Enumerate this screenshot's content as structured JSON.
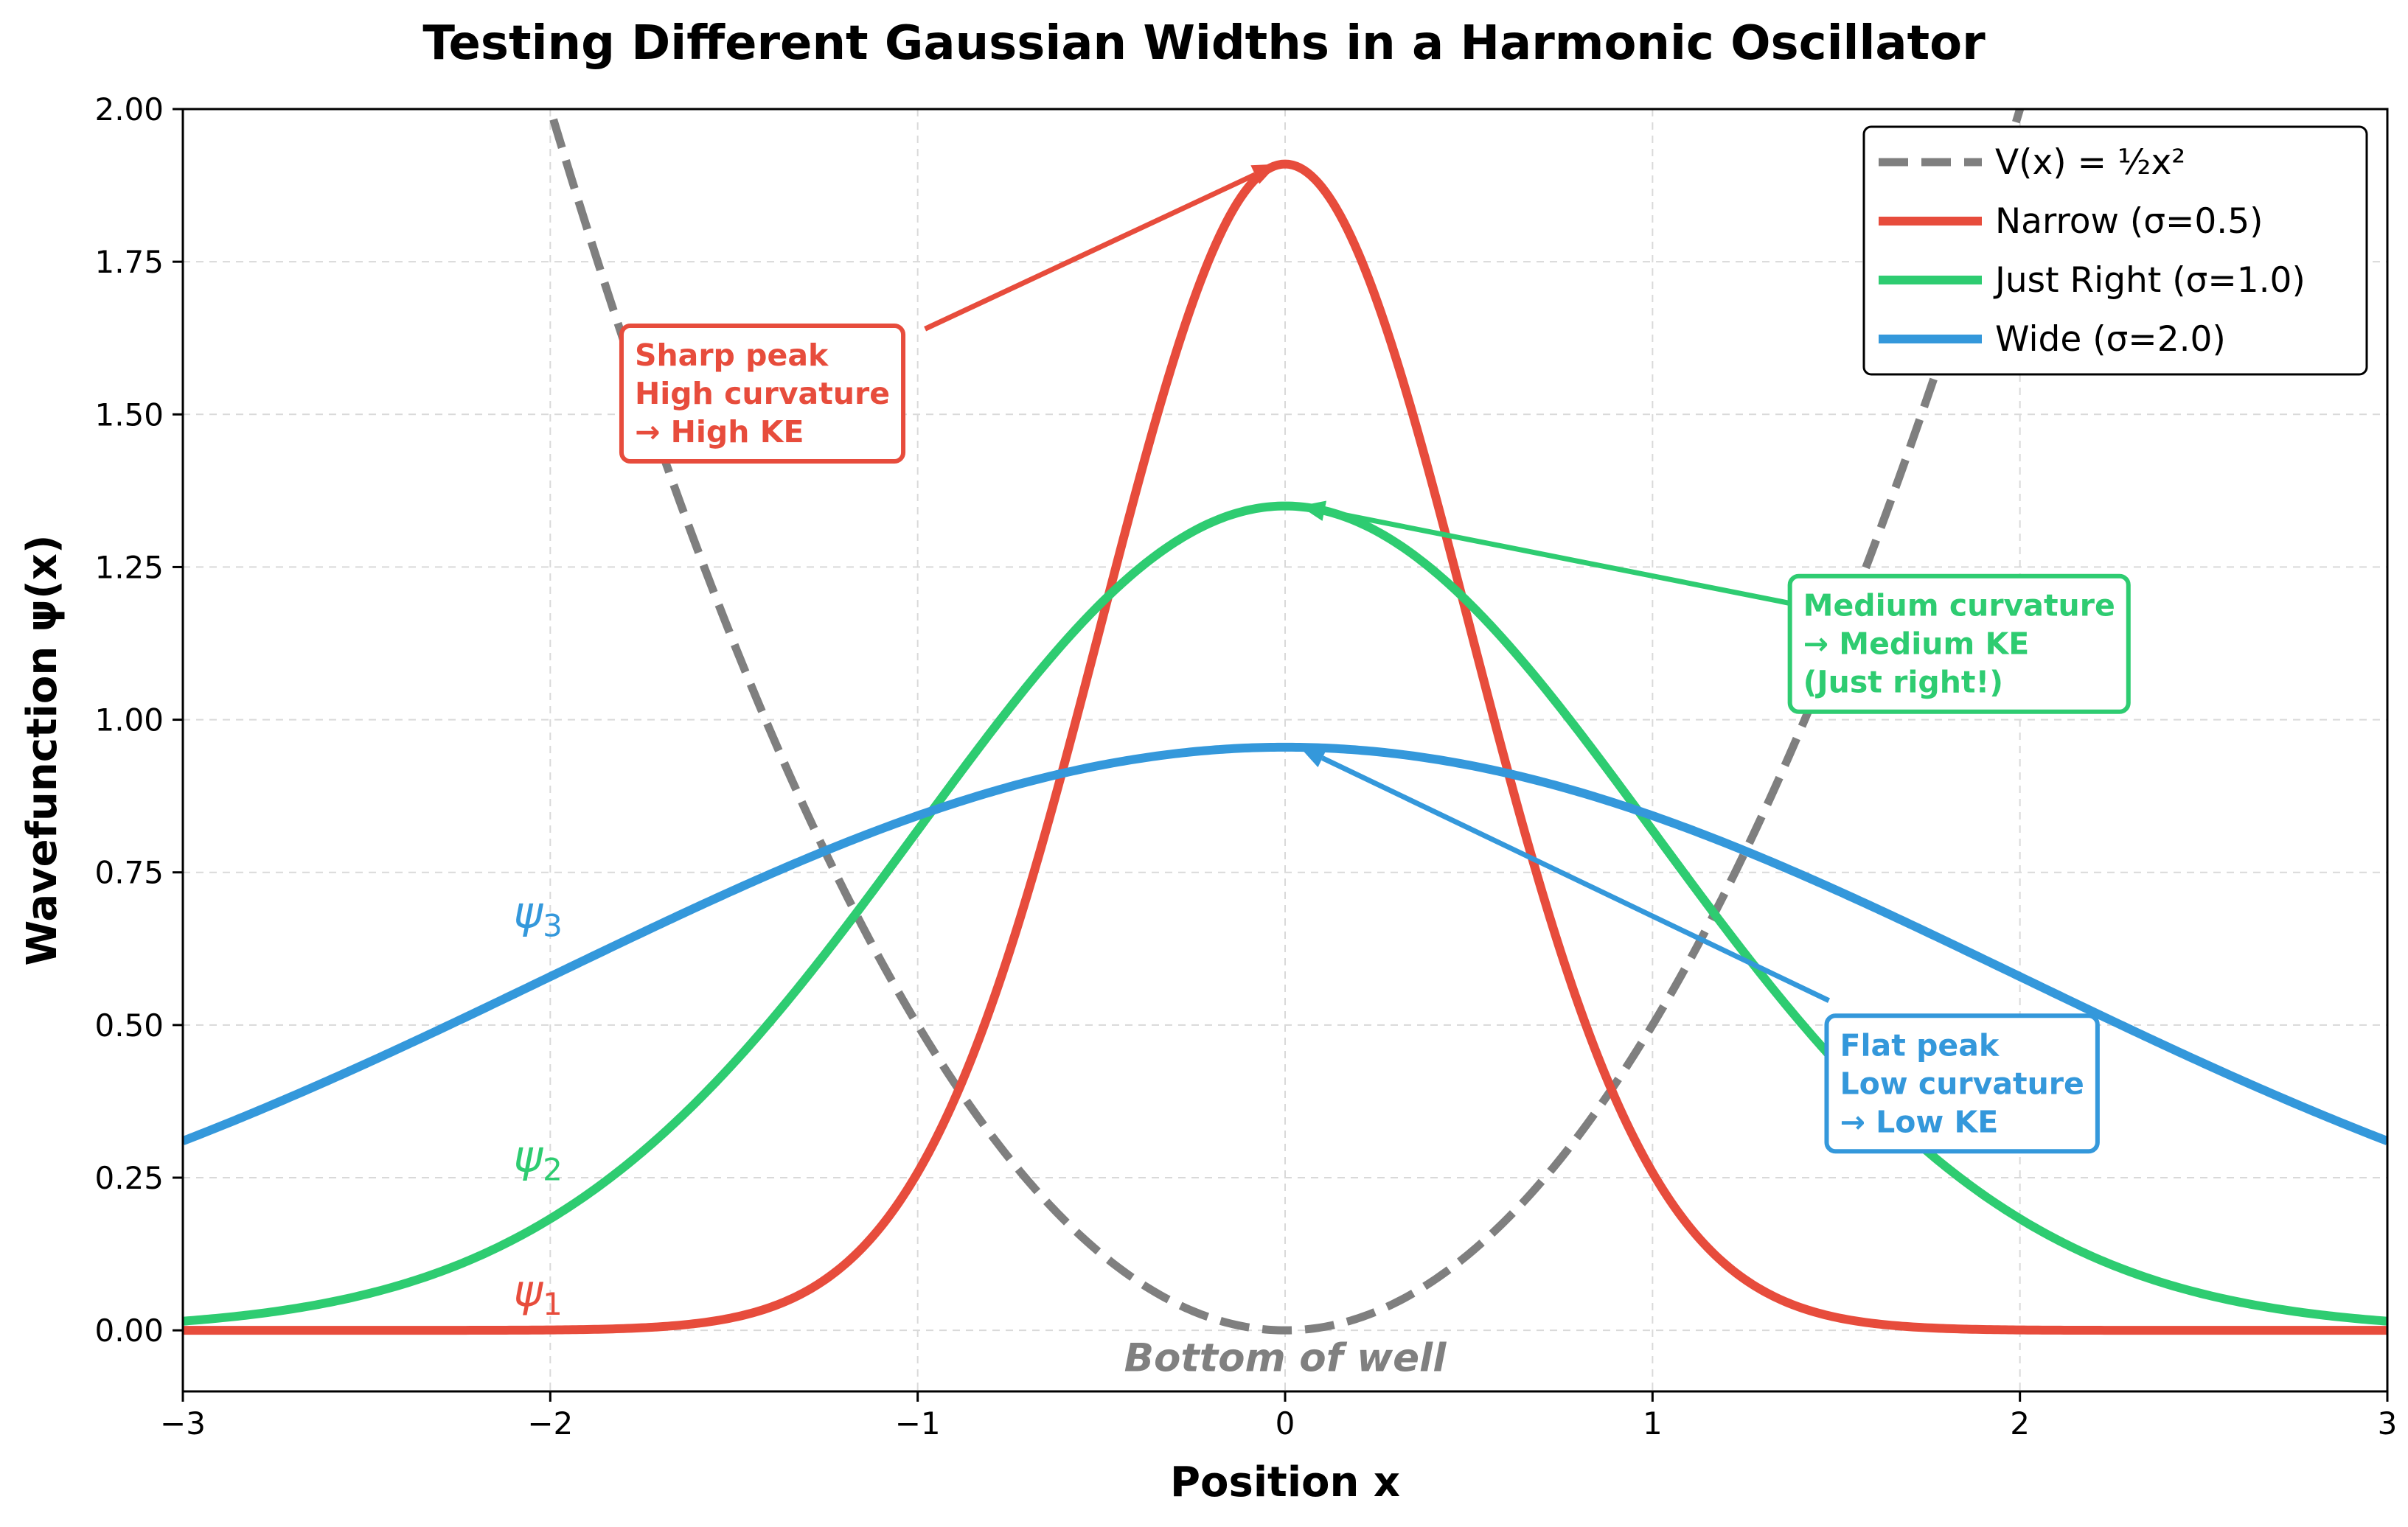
{
  "chart_data": {
    "type": "line",
    "title": "Testing Different Gaussian Widths in a Harmonic Oscillator",
    "xlabel": "Position x",
    "ylabel": "Wavefunction ψ(x)",
    "xlim": [
      -3,
      3
    ],
    "ylim": [
      -0.1,
      2.0
    ],
    "xticks": [
      -3,
      -2,
      -1,
      0,
      1,
      2,
      3
    ],
    "xtick_labels": [
      "−3",
      "−2",
      "−1",
      "0",
      "1",
      "2",
      "3"
    ],
    "yticks": [
      0.0,
      0.25,
      0.5,
      0.75,
      1.0,
      1.25,
      1.5,
      1.75,
      2.0
    ],
    "ytick_labels": [
      "0.00",
      "0.25",
      "0.50",
      "0.75",
      "1.00",
      "1.25",
      "1.50",
      "1.75",
      "2.00"
    ],
    "grid": true,
    "legend_position": "top-right",
    "series": [
      {
        "name": "V(x) = ½x²",
        "kind": "potential",
        "formula": "0.5*x^2",
        "color": "#7f7f7f",
        "style": "dashed"
      },
      {
        "name": "Narrow (σ=0.5)",
        "kind": "gaussian",
        "amplitude": 1.91,
        "sigma": 0.5,
        "color": "#e74c3c",
        "style": "solid"
      },
      {
        "name": "Just Right (σ=1.0)",
        "kind": "gaussian",
        "amplitude": 1.35,
        "sigma": 1.0,
        "color": "#2ecc71",
        "style": "solid"
      },
      {
        "name": "Wide (σ=2.0)",
        "kind": "gaussian",
        "amplitude": 0.955,
        "sigma": 2.0,
        "color": "#3498db",
        "style": "solid"
      }
    ],
    "curve_labels": [
      {
        "base": "ψ",
        "sub": "1",
        "x": -2.1,
        "y": 0.04,
        "color": "#e74c3c"
      },
      {
        "base": "ψ",
        "sub": "2",
        "x": -2.1,
        "y": 0.26,
        "color": "#2ecc71"
      },
      {
        "base": "ψ",
        "sub": "3",
        "x": -2.1,
        "y": 0.66,
        "color": "#3498db"
      }
    ],
    "annotations": [
      {
        "lines": [
          "Sharp peak",
          "High curvature",
          "→ High KE"
        ],
        "color": "#e74c3c",
        "box_x": -1.77,
        "box_y": 1.58,
        "target_x": -0.02,
        "target_y": 1.91,
        "tail_x": -0.98,
        "tail_y": 1.64
      },
      {
        "lines": [
          "Medium curvature",
          "→ Medium KE",
          "(Just right!)"
        ],
        "color": "#2ecc71",
        "box_x": 1.41,
        "box_y": 1.17,
        "target_x": 0.04,
        "target_y": 1.35,
        "tail_x": 1.38,
        "tail_y": 1.19
      },
      {
        "lines": [
          "Flat peak",
          "Low curvature",
          "→ Low KE"
        ],
        "color": "#3498db",
        "box_x": 1.51,
        "box_y": 0.45,
        "target_x": 0.04,
        "target_y": 0.955,
        "tail_x": 1.48,
        "tail_y": 0.54
      }
    ],
    "well_label": {
      "text": "Bottom of well",
      "x": 0.0,
      "y": -0.045
    }
  }
}
